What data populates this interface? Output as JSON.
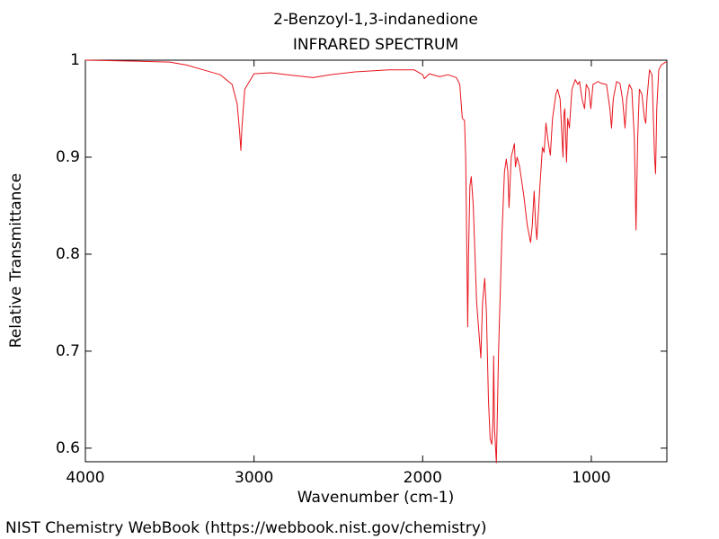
{
  "chart_data": {
    "type": "line",
    "title": "2-Benzoyl-1,3-indanedione",
    "subtitle": "INFRARED SPECTRUM",
    "xlabel": "Wavenumber (cm-1)",
    "ylabel": "Relative Transmittance",
    "source": "NIST Chemistry WebBook (https://webbook.nist.gov/chemistry)",
    "xlim": [
      4000,
      552
    ],
    "ylim": [
      0.586,
      1.0
    ],
    "xticks": [
      4000,
      3000,
      2000,
      1000
    ],
    "yticks": [
      1,
      0.9,
      0.8,
      0.7,
      0.6
    ],
    "grid": false,
    "x": [
      4000,
      3700,
      3500,
      3400,
      3300,
      3200,
      3130,
      3100,
      3085,
      3078,
      3072,
      3055,
      3000,
      2900,
      2800,
      2700,
      2650,
      2550,
      2400,
      2200,
      2050,
      2000,
      1990,
      1960,
      1900,
      1850,
      1800,
      1780,
      1765,
      1752,
      1745,
      1738,
      1733,
      1728,
      1720,
      1712,
      1700,
      1680,
      1655,
      1645,
      1632,
      1622,
      1610,
      1600,
      1590,
      1583,
      1579,
      1574,
      1563,
      1550,
      1530,
      1515,
      1504,
      1495,
      1488,
      1475,
      1456,
      1450,
      1440,
      1425,
      1400,
      1380,
      1360,
      1350,
      1339,
      1330,
      1323,
      1305,
      1290,
      1280,
      1269,
      1255,
      1243,
      1230,
      1210,
      1200,
      1185,
      1168,
      1162,
      1157,
      1147,
      1140,
      1130,
      1115,
      1095,
      1080,
      1070,
      1055,
      1040,
      1030,
      1015,
      1003,
      990,
      960,
      940,
      910,
      890,
      880,
      870,
      850,
      830,
      815,
      800,
      790,
      775,
      760,
      745,
      735,
      725,
      715,
      700,
      685,
      677,
      670,
      655,
      640,
      625,
      619,
      612,
      600,
      585,
      560,
      552
    ],
    "series": [
      {
        "color": "#e8141c",
        "values": [
          1.0,
          0.999,
          0.998,
          0.995,
          0.99,
          0.985,
          0.975,
          0.955,
          0.925,
          0.907,
          0.93,
          0.97,
          0.986,
          0.987,
          0.985,
          0.983,
          0.982,
          0.985,
          0.988,
          0.99,
          0.99,
          0.985,
          0.981,
          0.986,
          0.983,
          0.985,
          0.982,
          0.975,
          0.94,
          0.938,
          0.9,
          0.8,
          0.725,
          0.8,
          0.87,
          0.88,
          0.85,
          0.75,
          0.693,
          0.75,
          0.775,
          0.74,
          0.65,
          0.61,
          0.604,
          0.63,
          0.695,
          0.62,
          0.585,
          0.7,
          0.82,
          0.885,
          0.898,
          0.885,
          0.848,
          0.9,
          0.914,
          0.89,
          0.9,
          0.89,
          0.86,
          0.83,
          0.812,
          0.83,
          0.865,
          0.83,
          0.815,
          0.87,
          0.91,
          0.905,
          0.935,
          0.915,
          0.902,
          0.94,
          0.965,
          0.97,
          0.96,
          0.9,
          0.945,
          0.95,
          0.895,
          0.94,
          0.93,
          0.97,
          0.98,
          0.975,
          0.978,
          0.96,
          0.95,
          0.975,
          0.97,
          0.95,
          0.975,
          0.978,
          0.976,
          0.975,
          0.95,
          0.93,
          0.96,
          0.978,
          0.976,
          0.96,
          0.93,
          0.96,
          0.975,
          0.97,
          0.92,
          0.825,
          0.92,
          0.97,
          0.965,
          0.94,
          0.935,
          0.96,
          0.99,
          0.985,
          0.9,
          0.883,
          0.95,
          0.99,
          0.995,
          0.998,
          0.998
        ]
      }
    ]
  }
}
